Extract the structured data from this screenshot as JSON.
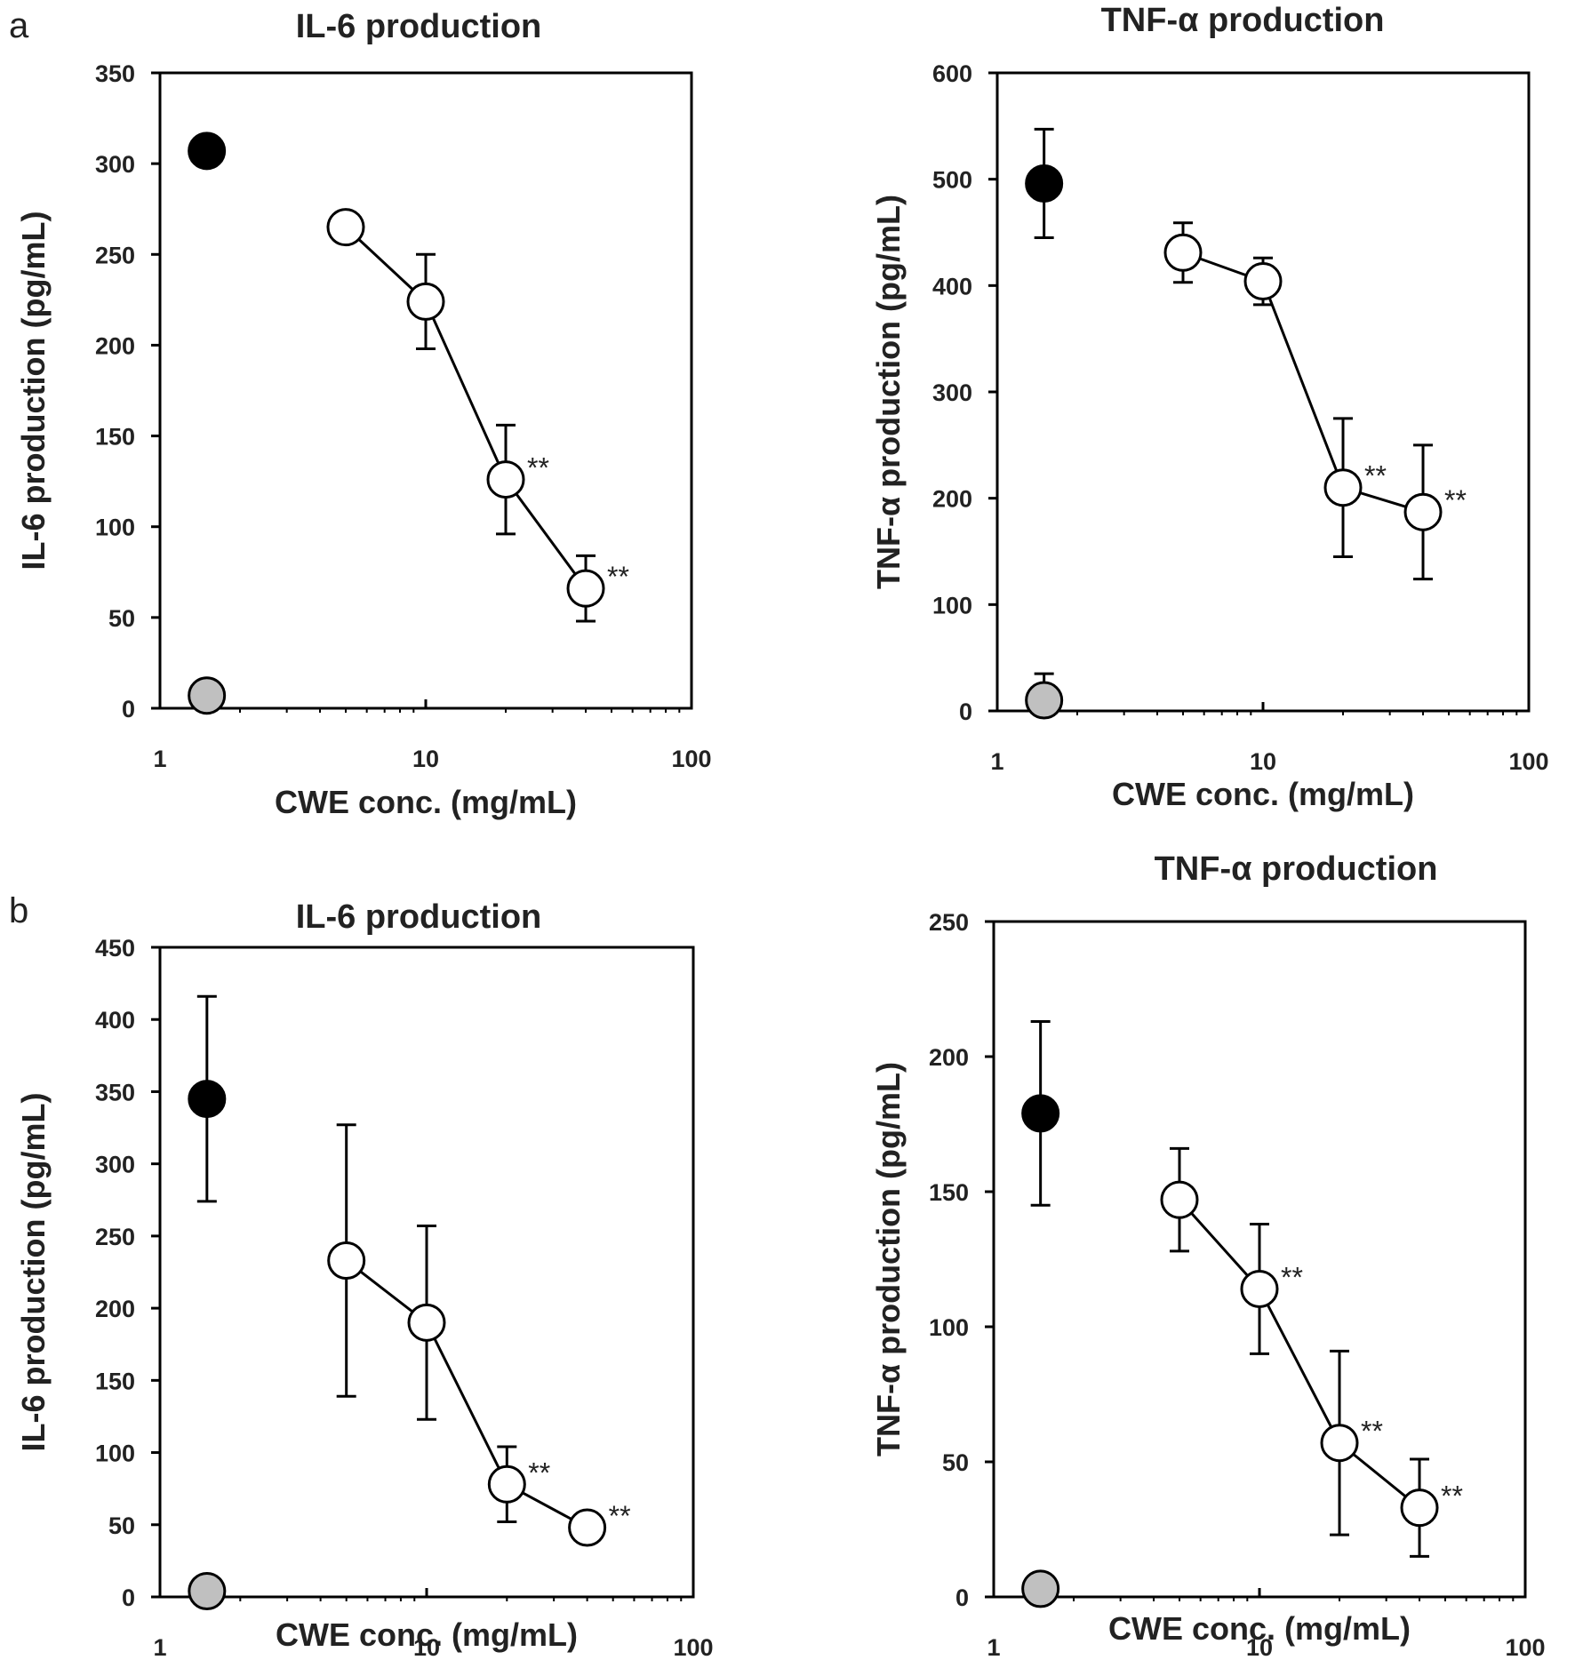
{
  "colors": {
    "control_fill": "#000000",
    "blank_fill": "#c0c0c0",
    "sample_fill": "#ffffff",
    "stroke": "#000000"
  },
  "chart_data": [
    {
      "panel_label": "a",
      "type": "scatter",
      "title": "IL-6 production",
      "xlabel": "CWE conc. (mg/mL)",
      "ylabel": "IL-6 production (pg/mL)",
      "x_scale": "log",
      "xlim": [
        1,
        100
      ],
      "xticks": [
        "1",
        "10",
        "100"
      ],
      "ylim": [
        0,
        350
      ],
      "yticks": [
        "0",
        "50",
        "100",
        "150",
        "200",
        "250",
        "300",
        "350"
      ],
      "grid": false,
      "control": {
        "x": 1.5,
        "y": 307,
        "err": 0
      },
      "blank": {
        "x": 1.5,
        "y": 7,
        "err": 0
      },
      "series": [
        {
          "x": [
            5,
            10,
            20,
            40
          ],
          "y": [
            265,
            224,
            126,
            66
          ],
          "err": [
            0,
            26,
            30,
            18
          ],
          "sig": [
            "",
            "",
            "**",
            "**"
          ]
        }
      ]
    },
    {
      "panel_label": "",
      "type": "scatter",
      "title": "TNF-α production",
      "xlabel": "CWE conc. (mg/mL)",
      "ylabel": "TNF-α production (pg/mL)",
      "x_scale": "log",
      "xlim": [
        1,
        100
      ],
      "xticks": [
        "1",
        "10",
        "100"
      ],
      "ylim": [
        0,
        600
      ],
      "yticks": [
        "0",
        "100",
        "200",
        "300",
        "400",
        "500",
        "600"
      ],
      "grid": false,
      "control": {
        "x": 1.5,
        "y": 496,
        "err": 51
      },
      "blank": {
        "x": 1.5,
        "y": 10,
        "err": 25
      },
      "series": [
        {
          "x": [
            5,
            10,
            20,
            40
          ],
          "y": [
            431,
            404,
            210,
            187
          ],
          "err": [
            28,
            22,
            65,
            63
          ],
          "sig": [
            "",
            "",
            "**",
            "**"
          ]
        }
      ]
    },
    {
      "panel_label": "b",
      "type": "scatter",
      "title": "IL-6 production",
      "xlabel": "CWE conc. (mg/mL)",
      "ylabel": "IL-6 production (pg/mL)",
      "x_scale": "log",
      "xlim": [
        1,
        100
      ],
      "xticks": [
        "1",
        "10",
        "100"
      ],
      "ylim": [
        0,
        450
      ],
      "yticks": [
        "0",
        "50",
        "100",
        "150",
        "200",
        "250",
        "300",
        "350",
        "400",
        "450"
      ],
      "grid": false,
      "control": {
        "x": 1.5,
        "y": 345,
        "err": 71
      },
      "blank": {
        "x": 1.5,
        "y": 4,
        "err": 0
      },
      "series": [
        {
          "x": [
            5,
            10,
            20,
            40
          ],
          "y": [
            233,
            190,
            78,
            48
          ],
          "err": [
            94,
            67,
            26,
            0
          ],
          "sig": [
            "",
            "",
            "**",
            "**"
          ]
        }
      ]
    },
    {
      "panel_label": "",
      "type": "scatter",
      "title": "TNF-α production",
      "xlabel": "CWE conc. (mg/mL)",
      "ylabel": "TNF-α production (pg/mL)",
      "x_scale": "log",
      "xlim": [
        1,
        100
      ],
      "xticks": [
        "1",
        "10",
        "100"
      ],
      "ylim": [
        0,
        250
      ],
      "yticks": [
        "0",
        "50",
        "100",
        "150",
        "200",
        "250"
      ],
      "grid": false,
      "control": {
        "x": 1.5,
        "y": 179,
        "err": 34
      },
      "blank": {
        "x": 1.5,
        "y": 3,
        "err": 0
      },
      "series": [
        {
          "x": [
            5,
            10,
            20,
            40
          ],
          "y": [
            147,
            114,
            57,
            33
          ],
          "err": [
            19,
            24,
            34,
            18
          ],
          "sig": [
            "",
            "**",
            "**",
            "**"
          ]
        }
      ]
    }
  ]
}
